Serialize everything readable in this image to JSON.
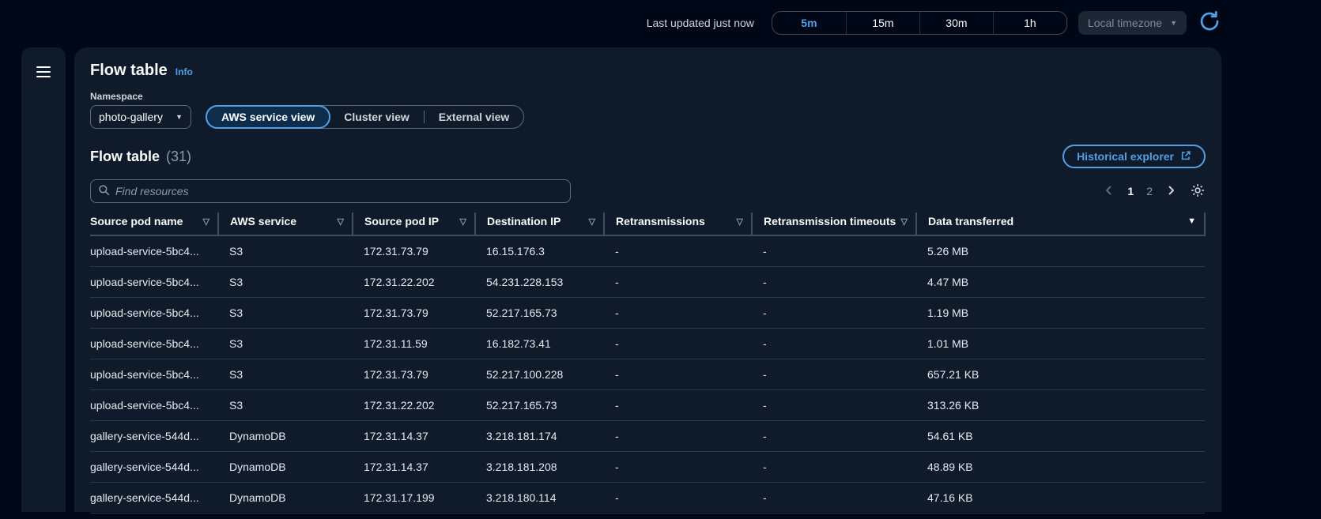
{
  "topbar": {
    "last_updated": "Last updated just now",
    "time_ranges": [
      {
        "label": "5m",
        "selected": true
      },
      {
        "label": "15m",
        "selected": false
      },
      {
        "label": "30m",
        "selected": false
      },
      {
        "label": "1h",
        "selected": false
      }
    ],
    "timezone_select": "Local timezone"
  },
  "panel": {
    "title": "Flow table",
    "info_link": "Info",
    "namespace": {
      "label": "Namespace",
      "value": "photo-gallery"
    },
    "view_toggle": [
      {
        "label": "AWS service view",
        "selected": true
      },
      {
        "label": "Cluster view",
        "selected": false
      },
      {
        "label": "External view",
        "selected": false
      }
    ],
    "section": {
      "title": "Flow table",
      "count": "(31)",
      "historical_explorer_label": "Historical explorer",
      "search_placeholder": "Find resources"
    },
    "pagination": {
      "pages": [
        "1",
        "2"
      ],
      "current": "1"
    }
  },
  "table": {
    "columns": [
      {
        "label": "Source pod name",
        "filter": true
      },
      {
        "label": "AWS service",
        "filter": true
      },
      {
        "label": "Source pod IP",
        "filter": true
      },
      {
        "label": "Destination IP",
        "filter": true
      },
      {
        "label": "Retransmissions",
        "filter": true
      },
      {
        "label": "Retransmission timeouts",
        "filter": true
      },
      {
        "label": "Data transferred",
        "filter": false,
        "sorted": "desc"
      }
    ],
    "rows": [
      [
        "upload-service-5bc4...",
        "S3",
        "172.31.73.79",
        "16.15.176.3",
        "-",
        "-",
        "5.26 MB"
      ],
      [
        "upload-service-5bc4...",
        "S3",
        "172.31.22.202",
        "54.231.228.153",
        "-",
        "-",
        "4.47 MB"
      ],
      [
        "upload-service-5bc4...",
        "S3",
        "172.31.73.79",
        "52.217.165.73",
        "-",
        "-",
        "1.19 MB"
      ],
      [
        "upload-service-5bc4...",
        "S3",
        "172.31.11.59",
        "16.182.73.41",
        "-",
        "-",
        "1.01 MB"
      ],
      [
        "upload-service-5bc4...",
        "S3",
        "172.31.73.79",
        "52.217.100.228",
        "-",
        "-",
        "657.21 KB"
      ],
      [
        "upload-service-5bc4...",
        "S3",
        "172.31.22.202",
        "52.217.165.73",
        "-",
        "-",
        "313.26 KB"
      ],
      [
        "gallery-service-544d...",
        "DynamoDB",
        "172.31.14.37",
        "3.218.181.174",
        "-",
        "-",
        "54.61 KB"
      ],
      [
        "gallery-service-544d...",
        "DynamoDB",
        "172.31.14.37",
        "3.218.181.208",
        "-",
        "-",
        "48.89 KB"
      ],
      [
        "gallery-service-544d...",
        "DynamoDB",
        "172.31.17.199",
        "3.218.180.114",
        "-",
        "-",
        "47.16 KB"
      ]
    ]
  },
  "icons": {
    "caret_down": "▼",
    "filter": "▽",
    "sort_desc": "▼"
  },
  "colors": {
    "accent_blue": "#539fe5",
    "page_bg": "#000716",
    "card_bg": "#0f1b2a",
    "muted": "#8d99a8"
  }
}
